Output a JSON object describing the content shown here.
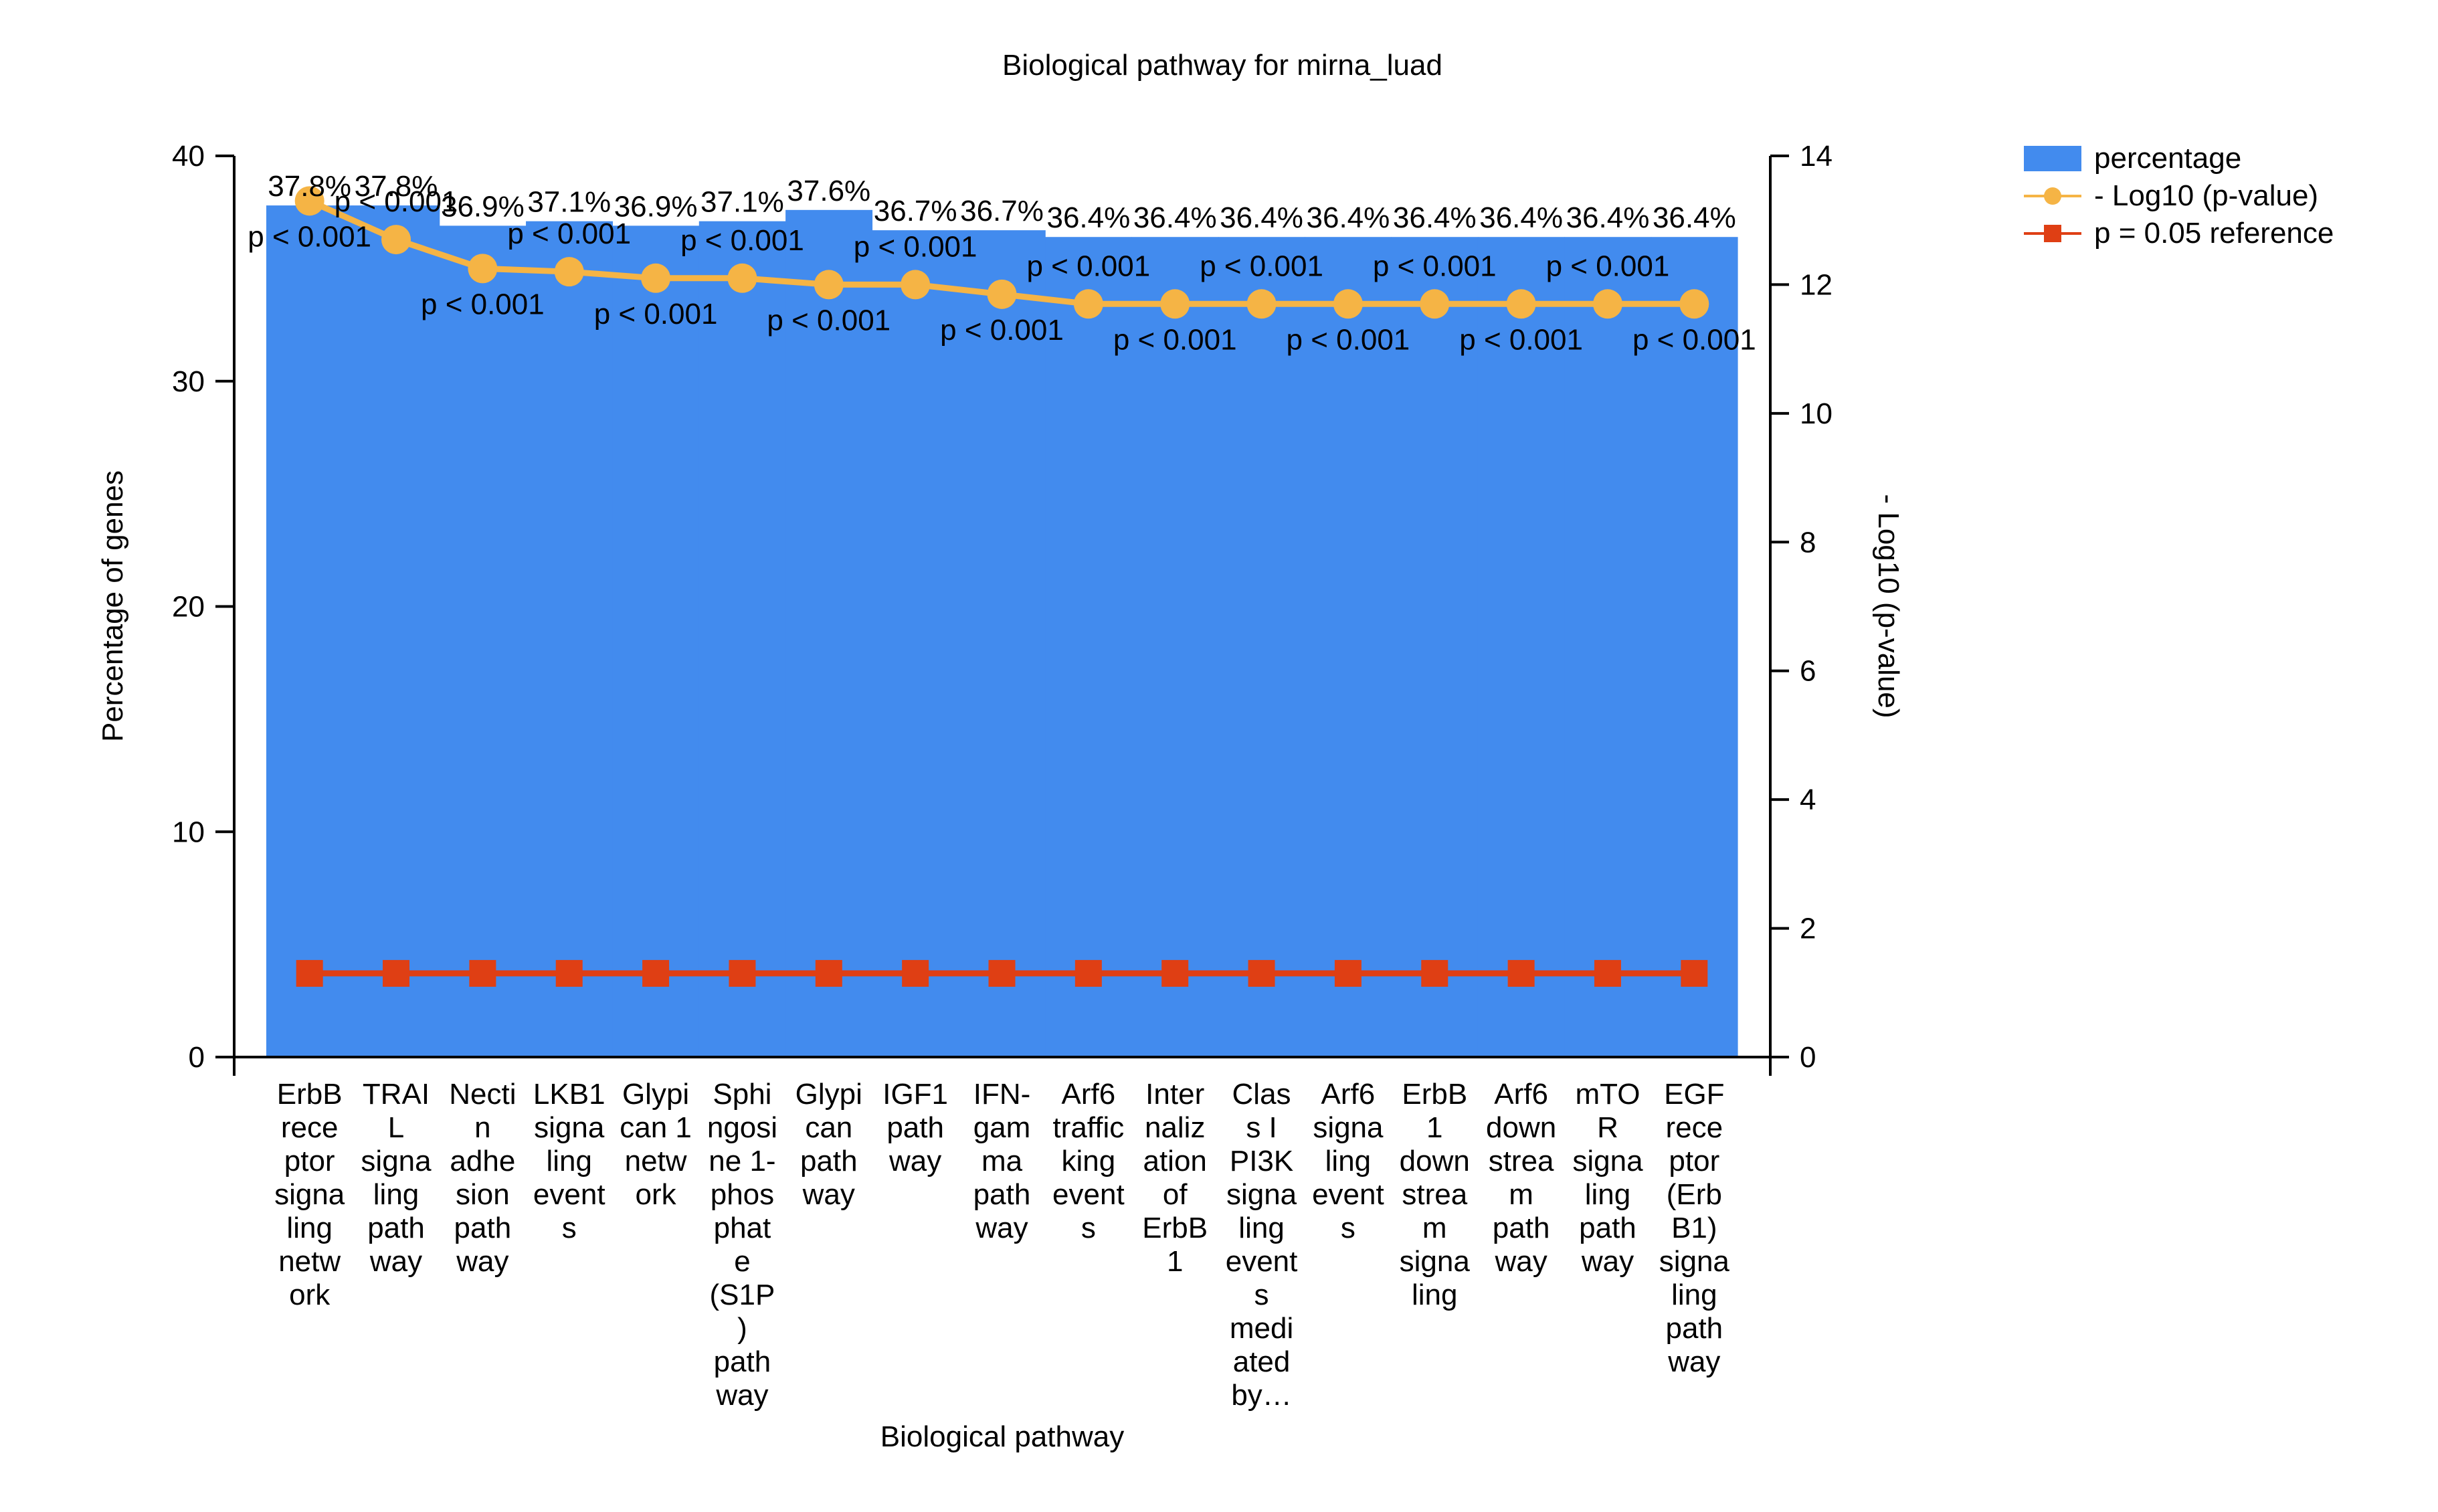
{
  "chart_data": {
    "type": "bar",
    "title": "Biological pathway for mirna_luad",
    "xlabel": "Biological pathway",
    "ylabel": "Percentage of genes",
    "y2label": "- Log10 (p-value)",
    "ylim": [
      0,
      40
    ],
    "y2lim": [
      0,
      14
    ],
    "yticks": [
      0,
      10,
      20,
      30,
      40
    ],
    "y2ticks": [
      0,
      2,
      4,
      6,
      8,
      10,
      12,
      14
    ],
    "grid": false,
    "legend_position": "top-right",
    "colors": {
      "bar": "#428BEE",
      "line": "#F5B445",
      "reference": "#DF3F14",
      "axis": "#000000"
    },
    "categories": [
      "ErbB receptor signaling network",
      "TRAIL signaling pathway",
      "Nectin adhesion pathway",
      "LKB1 signaling events",
      "Glypican 1 network",
      "Sphingosine 1-phosphate (S1P) pathway",
      "Glypican pathway",
      "IGF1 pathway",
      "IFN-gamma pathway",
      "Arf6 trafficking events",
      "Internalization of ErbB1",
      "Class I PI3K signaling events mediated by…",
      "Arf6 signaling events",
      "ErbB1 downstream signaling",
      "Arf6 downstream pathway",
      "mTOR signaling pathway",
      "EGF receptor (ErbB1) signaling pathway"
    ],
    "category_lines": [
      [
        "ErbB",
        "rece",
        "ptor",
        "signa",
        "ling",
        "netw",
        "ork"
      ],
      [
        "TRAI",
        "L",
        "signa",
        "ling",
        "path",
        "way"
      ],
      [
        "Necti",
        "n",
        "adhe",
        "sion",
        "path",
        "way"
      ],
      [
        "LKB1",
        "signa",
        "ling",
        "event",
        "s"
      ],
      [
        "Glypi",
        "can 1",
        "netw",
        "ork"
      ],
      [
        "Sphi",
        "ngosi",
        "ne 1-",
        "phos",
        "phat",
        "e",
        "(S1P",
        ")",
        "path",
        "way"
      ],
      [
        "Glypi",
        "can",
        "path",
        "way"
      ],
      [
        "IGF1",
        "path",
        "way"
      ],
      [
        "IFN-",
        "gam",
        "ma",
        "path",
        "way"
      ],
      [
        "Arf6",
        "traffic",
        "king",
        "event",
        "s"
      ],
      [
        "Inter",
        "naliz",
        "ation",
        "of",
        "ErbB",
        "1"
      ],
      [
        "Clas",
        "s I",
        "PI3K",
        "signa",
        "ling",
        "event",
        "s",
        "medi",
        "ated",
        "by…"
      ],
      [
        "Arf6",
        "signa",
        "ling",
        "event",
        "s"
      ],
      [
        "ErbB",
        "1",
        "down",
        "strea",
        "m",
        "signa",
        "ling"
      ],
      [
        "Arf6",
        "down",
        "strea",
        "m",
        "path",
        "way"
      ],
      [
        "mTO",
        "R",
        "signa",
        "ling",
        "path",
        "way"
      ],
      [
        "EGF",
        "rece",
        "ptor",
        "(Erb",
        "B1)",
        "signa",
        "ling",
        "path",
        "way"
      ]
    ],
    "series": [
      {
        "name": "percentage",
        "type": "bar",
        "axis": "left",
        "values": [
          37.8,
          37.8,
          36.9,
          37.1,
          36.9,
          37.1,
          37.6,
          36.7,
          36.7,
          36.4,
          36.4,
          36.4,
          36.4,
          36.4,
          36.4,
          36.4,
          36.4
        ],
        "labels": [
          "37.8%",
          "37.8%",
          "36.9%",
          "37.1%",
          "36.9%",
          "37.1%",
          "37.6%",
          "36.7%",
          "36.7%",
          "36.4%",
          "36.4%",
          "36.4%",
          "36.4%",
          "36.4%",
          "36.4%",
          "36.4%",
          "36.4%"
        ]
      },
      {
        "name": "- Log10 (p-value)",
        "type": "line",
        "axis": "right",
        "values": [
          13.3,
          12.7,
          12.25,
          12.2,
          12.1,
          12.1,
          12.0,
          12.0,
          11.85,
          11.7,
          11.7,
          11.7,
          11.7,
          11.7,
          11.7,
          11.7,
          11.7
        ],
        "labels": [
          "p < 0.001",
          "p < 0.001",
          "p < 0.001",
          "p < 0.001",
          "p < 0.001",
          "p < 0.001",
          "p < 0.001",
          "p < 0.001",
          "p < 0.001",
          "p < 0.001",
          "p < 0.001",
          "p < 0.001",
          "p < 0.001",
          "p < 0.001",
          "p < 0.001",
          "p < 0.001",
          "p < 0.001"
        ]
      },
      {
        "name": "p = 0.05 reference",
        "type": "line",
        "axis": "right",
        "values": [
          1.3,
          1.3,
          1.3,
          1.3,
          1.3,
          1.3,
          1.3,
          1.3,
          1.3,
          1.3,
          1.3,
          1.3,
          1.3,
          1.3,
          1.3,
          1.3,
          1.3
        ]
      }
    ]
  }
}
